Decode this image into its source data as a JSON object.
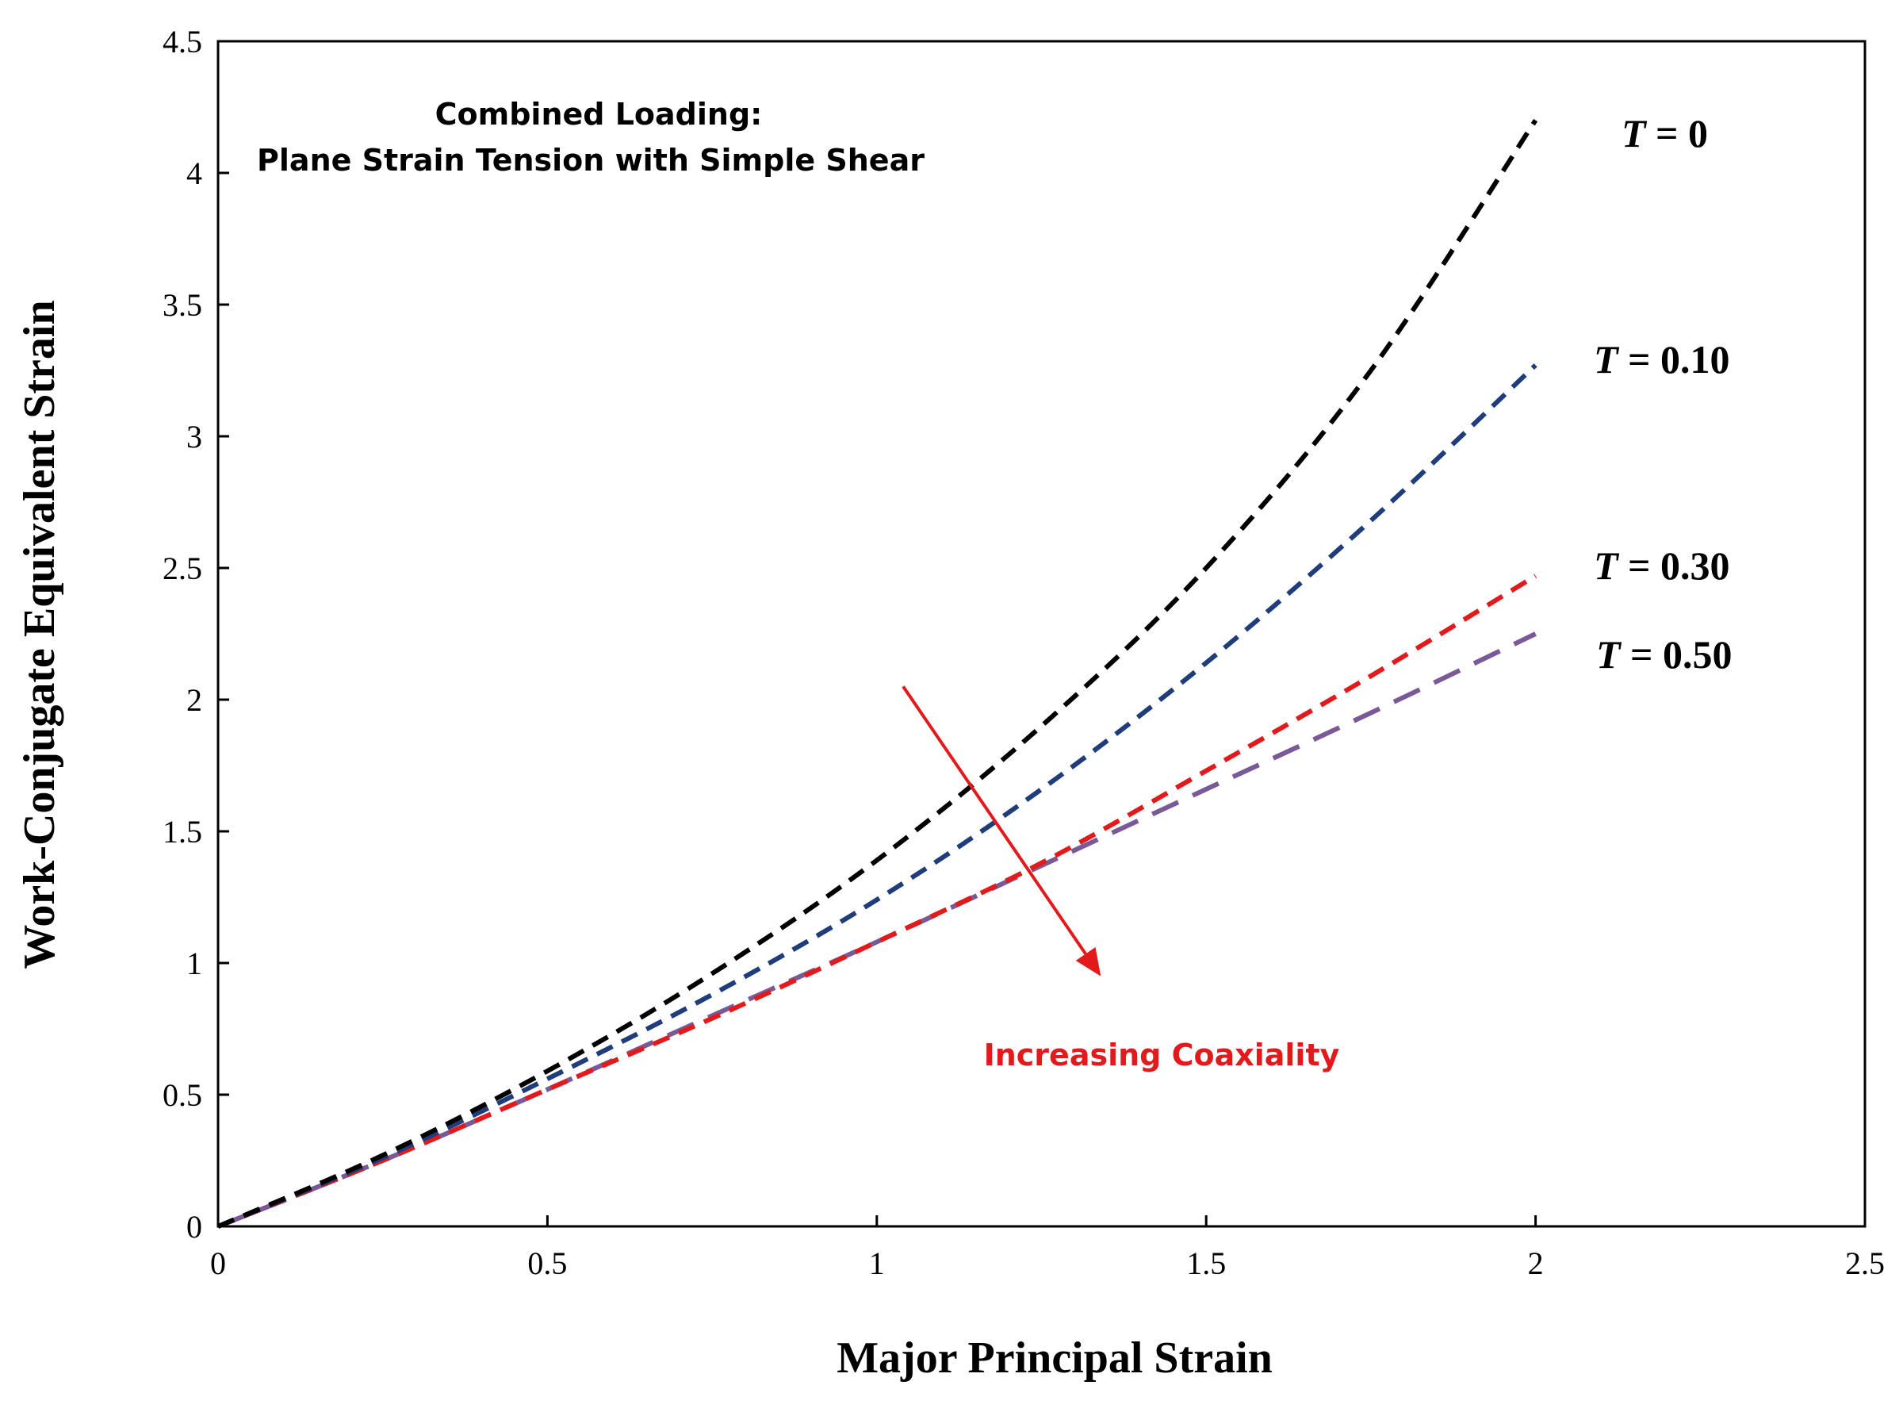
{
  "chart_data": {
    "type": "line",
    "xlabel": "Major Principal Strain",
    "ylabel": "Work-Conjugate Equivalent Strain",
    "xlim": [
      0,
      2.5
    ],
    "ylim": [
      0,
      4.5
    ],
    "xticks": [
      "0",
      "0.5",
      "1",
      "1.5",
      "2",
      "2.5"
    ],
    "yticks": [
      "0",
      "0.5",
      "1",
      "1.5",
      "2",
      "2.5",
      "3",
      "3.5",
      "4",
      "4.5"
    ],
    "annotation_title": [
      "Combined Loading:",
      "Plane Strain Tension with Simple Shear"
    ],
    "arrow_label": "Increasing Coaxiality",
    "arrow": {
      "from": [
        1.04,
        2.05
      ],
      "to": [
        1.34,
        0.95
      ],
      "color": "#e31a1c"
    },
    "series": [
      {
        "name": "T = 0",
        "label_var": "T",
        "label_rest": " = 0",
        "color": "#000000",
        "x": [
          0,
          0.25,
          0.5,
          0.75,
          1.0,
          1.25,
          1.5,
          1.75,
          2.0
        ],
        "y": [
          0,
          0.27,
          0.59,
          0.96,
          1.39,
          1.9,
          2.5,
          3.25,
          4.2
        ]
      },
      {
        "name": "T = 0.10",
        "label_var": "T",
        "label_rest": " = 0.10",
        "color": "#1f3d7a",
        "x": [
          0,
          0.25,
          0.5,
          0.75,
          1.0,
          1.25,
          1.5,
          1.75,
          2.0
        ],
        "y": [
          0,
          0.26,
          0.56,
          0.88,
          1.24,
          1.66,
          2.14,
          2.68,
          3.27
        ]
      },
      {
        "name": "T = 0.30",
        "label_var": "T",
        "label_rest": " = 0.30",
        "color": "#e31a1c",
        "x": [
          0,
          0.25,
          0.5,
          0.75,
          1.0,
          1.25,
          1.5,
          1.75,
          2.0
        ],
        "y": [
          0,
          0.25,
          0.52,
          0.79,
          1.08,
          1.38,
          1.73,
          2.09,
          2.47
        ]
      },
      {
        "name": "T = 0.50",
        "label_var": "T",
        "label_rest": " = 0.50",
        "color": "#7a5a96",
        "x": [
          0,
          0.25,
          0.5,
          0.75,
          1.0,
          1.25,
          1.5,
          1.75,
          2.0
        ],
        "y": [
          0,
          0.25,
          0.52,
          0.8,
          1.08,
          1.37,
          1.66,
          1.95,
          2.25
        ]
      }
    ]
  }
}
